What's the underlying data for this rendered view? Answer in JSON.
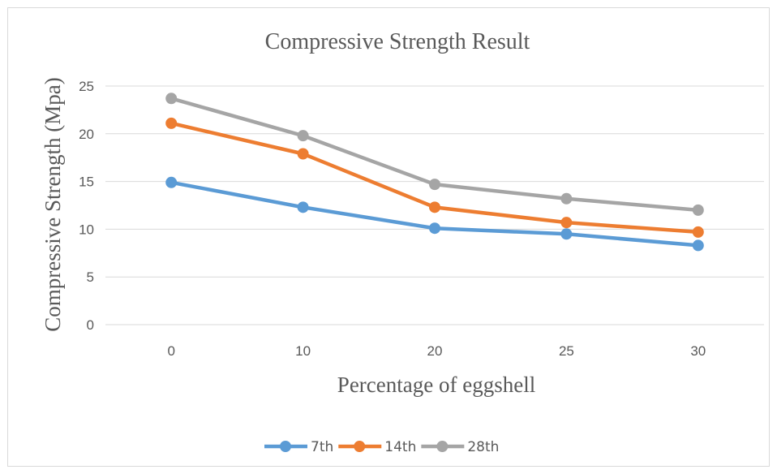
{
  "chart_data": {
    "type": "line",
    "title": "Compressive Strength Result",
    "xlabel": "Percentage of eggshell",
    "ylabel": "Compressive Strength (Mpa)",
    "categories": [
      "0",
      "10",
      "20",
      "25",
      "30"
    ],
    "ylim": [
      0,
      25
    ],
    "yticks": [
      0,
      5,
      10,
      15,
      20,
      25
    ],
    "grid": true,
    "legend_position": "bottom",
    "series": [
      {
        "name": "7th",
        "color": "#5b9bd5",
        "values": [
          14.9,
          12.3,
          10.1,
          9.5,
          8.3
        ]
      },
      {
        "name": "14th",
        "color": "#ed7d31",
        "values": [
          21.1,
          17.9,
          12.3,
          10.7,
          9.7
        ]
      },
      {
        "name": "28th",
        "color": "#a5a5a5",
        "values": [
          23.7,
          19.8,
          14.7,
          13.2,
          12.0
        ]
      }
    ]
  }
}
